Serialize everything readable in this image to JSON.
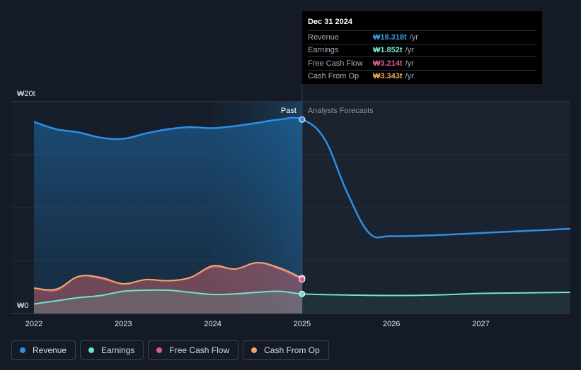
{
  "tooltip": {
    "date": "Dec 31 2024",
    "rows": [
      {
        "label": "Revenue",
        "value": "₩18.318t",
        "unit": "/yr",
        "color": "#3b9be6"
      },
      {
        "label": "Earnings",
        "value": "₩1.852t",
        "unit": "/yr",
        "color": "#6fe3d0"
      },
      {
        "label": "Free Cash Flow",
        "value": "₩3.214t",
        "unit": "/yr",
        "color": "#e05c9a"
      },
      {
        "label": "Cash From Op",
        "value": "₩3.343t",
        "unit": "/yr",
        "color": "#f0a860"
      }
    ]
  },
  "legend": [
    {
      "label": "Revenue",
      "color": "#2e8fe6"
    },
    {
      "label": "Earnings",
      "color": "#6fe3d0"
    },
    {
      "label": "Free Cash Flow",
      "color": "#d55b9b"
    },
    {
      "label": "Cash From Op",
      "color": "#f0a860"
    }
  ],
  "chart_data": {
    "type": "area",
    "ylabel_top": "₩20t",
    "ylabel_bottom": "₩0",
    "ylim": [
      0,
      20
    ],
    "xlim": [
      2022,
      2028
    ],
    "x_ticks": [
      "2022",
      "2023",
      "2024",
      "2025",
      "2026",
      "2027"
    ],
    "divider_x": 2025,
    "past_label": "Past",
    "forecast_label": "Analysts Forecasts",
    "grid": true,
    "series": [
      {
        "name": "Revenue",
        "color": "#2e8fe6",
        "points": [
          [
            2022.0,
            18.1
          ],
          [
            2022.25,
            17.4
          ],
          [
            2022.5,
            17.1
          ],
          [
            2022.75,
            16.6
          ],
          [
            2023.0,
            16.5
          ],
          [
            2023.25,
            17.0
          ],
          [
            2023.5,
            17.4
          ],
          [
            2023.75,
            17.6
          ],
          [
            2024.0,
            17.5
          ],
          [
            2024.25,
            17.7
          ],
          [
            2024.5,
            18.0
          ],
          [
            2024.75,
            18.32
          ],
          [
            2025.0,
            18.32
          ],
          [
            2025.25,
            16.5
          ],
          [
            2025.5,
            11.5
          ],
          [
            2025.75,
            7.6
          ],
          [
            2026.0,
            7.3
          ],
          [
            2026.5,
            7.4
          ],
          [
            2027.0,
            7.6
          ],
          [
            2027.5,
            7.8
          ],
          [
            2028.0,
            8.0
          ]
        ],
        "forecast_from": 2025.0
      },
      {
        "name": "Earnings",
        "color": "#6fe3d0",
        "points": [
          [
            2022.0,
            0.9
          ],
          [
            2022.25,
            1.2
          ],
          [
            2022.5,
            1.5
          ],
          [
            2022.75,
            1.7
          ],
          [
            2023.0,
            2.1
          ],
          [
            2023.25,
            2.2
          ],
          [
            2023.5,
            2.2
          ],
          [
            2023.75,
            2.0
          ],
          [
            2024.0,
            1.8
          ],
          [
            2024.25,
            1.85
          ],
          [
            2024.5,
            2.0
          ],
          [
            2024.75,
            2.1
          ],
          [
            2025.0,
            1.85
          ],
          [
            2025.5,
            1.75
          ],
          [
            2026.0,
            1.7
          ],
          [
            2026.5,
            1.75
          ],
          [
            2027.0,
            1.9
          ],
          [
            2027.5,
            1.95
          ],
          [
            2028.0,
            2.0
          ]
        ],
        "forecast_from": 2025.0
      },
      {
        "name": "Free Cash Flow",
        "color": "#d55b9b",
        "points": [
          [
            2022.0,
            2.4
          ],
          [
            2022.25,
            2.2
          ],
          [
            2022.5,
            3.5
          ],
          [
            2022.75,
            3.3
          ],
          [
            2023.0,
            2.8
          ],
          [
            2023.25,
            3.2
          ],
          [
            2023.5,
            3.1
          ],
          [
            2023.75,
            3.4
          ],
          [
            2024.0,
            4.4
          ],
          [
            2024.25,
            4.2
          ],
          [
            2024.5,
            4.8
          ],
          [
            2024.75,
            4.2
          ],
          [
            2025.0,
            3.214
          ]
        ]
      },
      {
        "name": "Cash From Op",
        "color": "#f0a860",
        "points": [
          [
            2022.0,
            2.4
          ],
          [
            2022.25,
            2.3
          ],
          [
            2022.5,
            3.5
          ],
          [
            2022.75,
            3.4
          ],
          [
            2023.0,
            2.8
          ],
          [
            2023.25,
            3.2
          ],
          [
            2023.5,
            3.1
          ],
          [
            2023.75,
            3.4
          ],
          [
            2024.0,
            4.5
          ],
          [
            2024.25,
            4.2
          ],
          [
            2024.5,
            4.8
          ],
          [
            2024.75,
            4.3
          ],
          [
            2025.0,
            3.343
          ]
        ]
      }
    ]
  }
}
